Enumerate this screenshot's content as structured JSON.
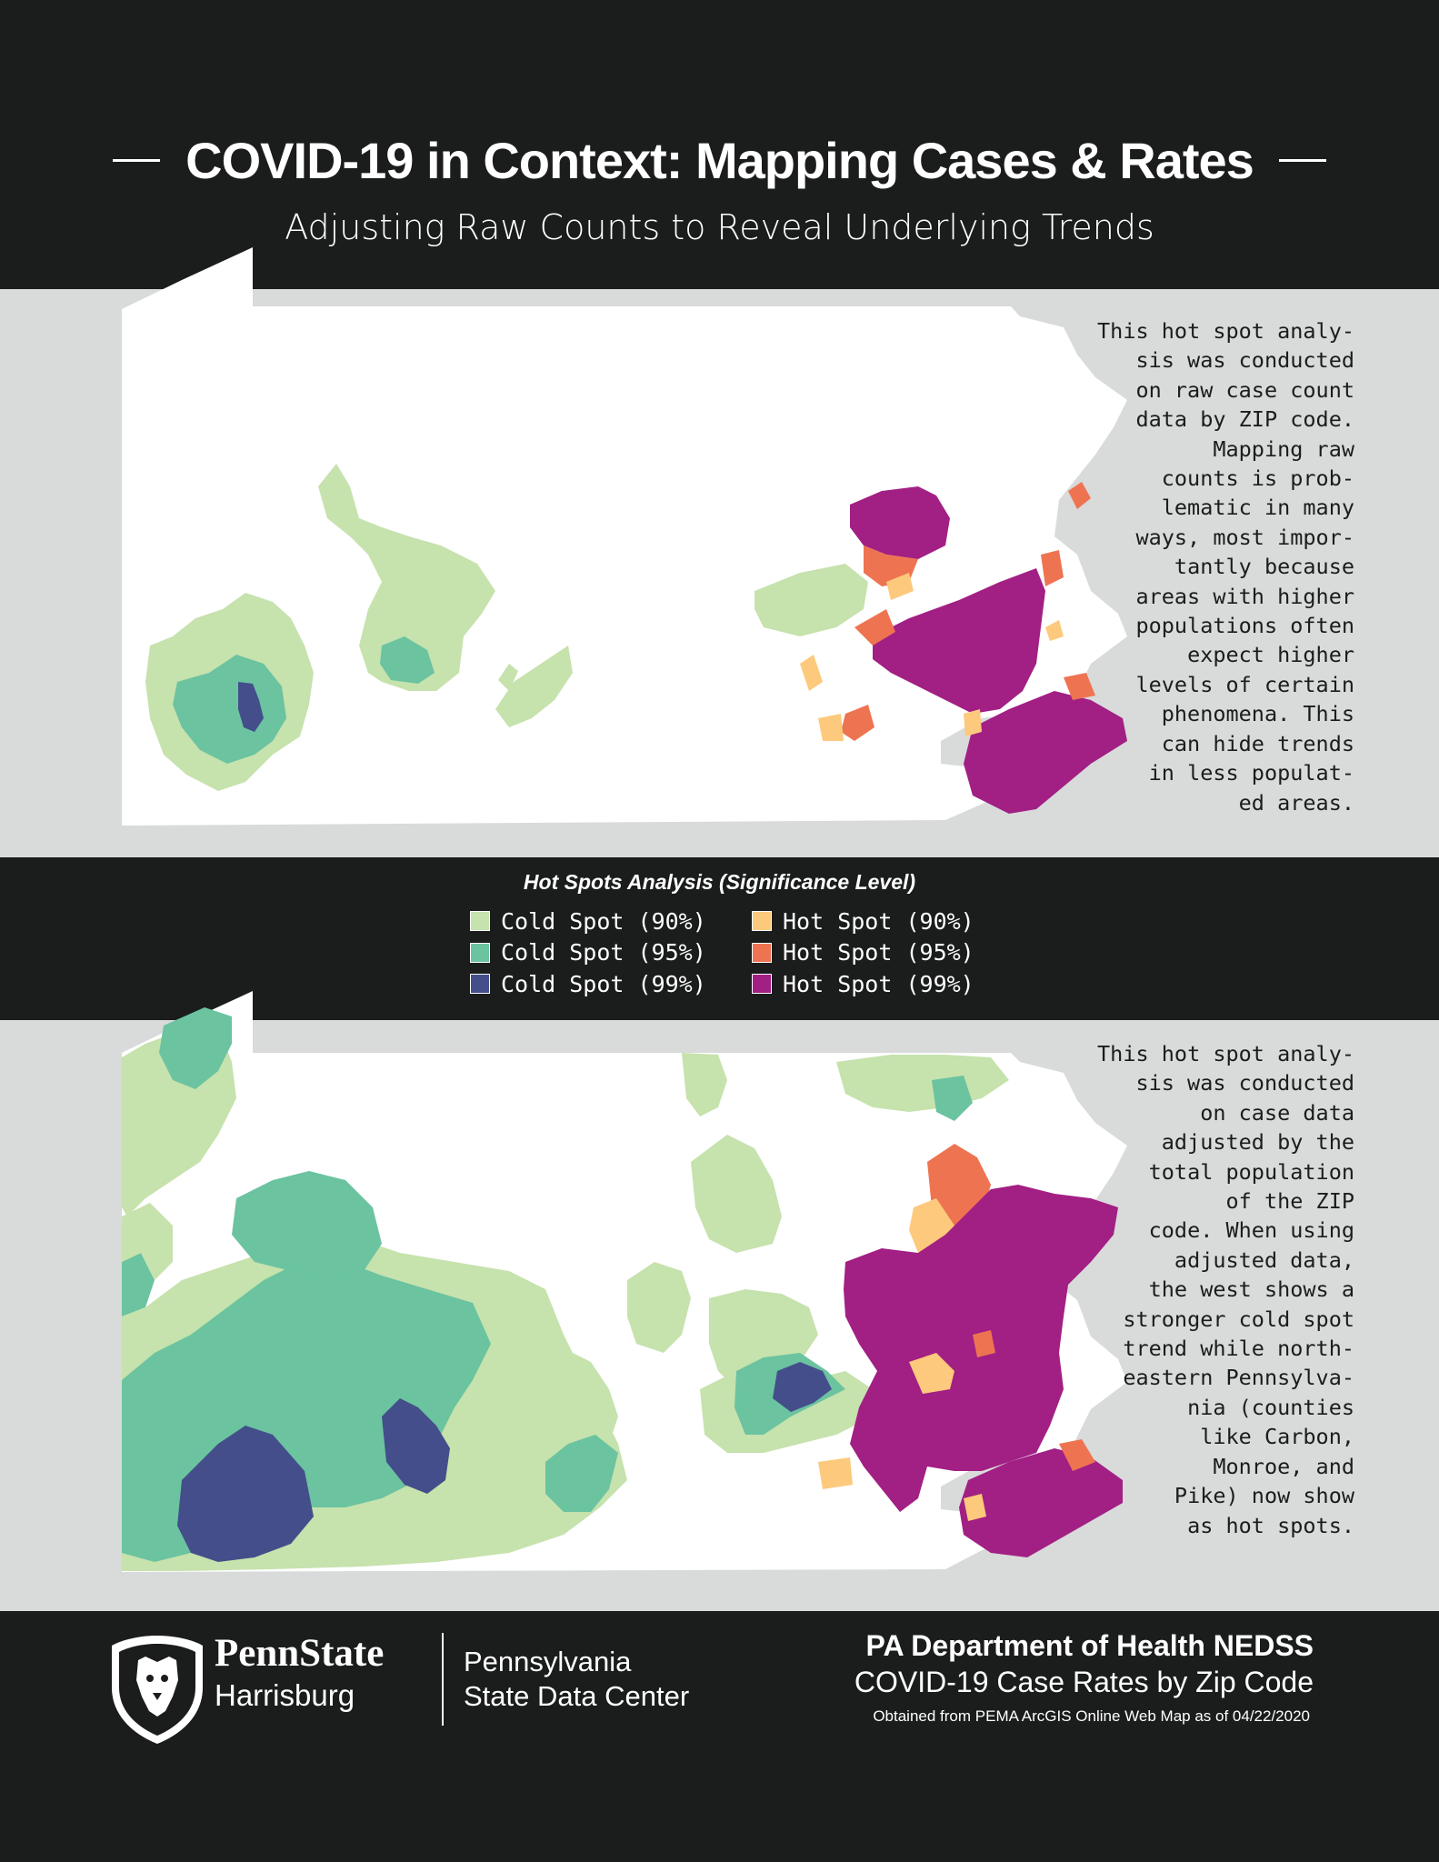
{
  "header": {
    "title": "COVID-19 in Context: Mapping Cases & Rates",
    "subtitle": "Adjusting Raw Counts to Reveal Underlying Trends"
  },
  "maps": [
    {
      "id": "raw-counts",
      "caption": "This hot spot analy-\nsis was conducted\non raw case count\ndata by ZIP code.\nMapping raw\ncounts is prob-\nlematic in many\nways, most impor-\ntantly because\nareas with higher\npopulations often\nexpect higher\nlevels of certain\nphenomena. This\ncan hide trends\nin less populat-\ned areas."
    },
    {
      "id": "adjusted-rates",
      "caption": "This hot spot analy-\nsis was conducted\non case data\nadjusted by the\ntotal population\nof the ZIP\ncode. When using\nadjusted data,\nthe west shows a\nstronger cold spot\ntrend while north-\neastern Pennsylva-\nnia (counties\nlike Carbon,\nMonroe, and\nPike) now show\nas hot spots."
    }
  ],
  "legend": {
    "title": "Hot Spots Analysis (Significance Level)",
    "items": [
      {
        "label": "Cold Spot (90%)",
        "color": "#c6e2ad"
      },
      {
        "label": "Cold Spot (95%)",
        "color": "#6bc3a0"
      },
      {
        "label": "Cold Spot (99%)",
        "color": "#434e8a"
      },
      {
        "label": "Hot Spot (90%)",
        "color": "#fdc97c"
      },
      {
        "label": "Hot Spot (95%)",
        "color": "#ee7451"
      },
      {
        "label": "Hot Spot (99%)",
        "color": "#a21f84"
      }
    ]
  },
  "footer": {
    "brand_name": "PennState",
    "brand_campus": "Harrisburg",
    "center_line1": "Pennsylvania",
    "center_line2": "State Data Center",
    "source_title": "PA Department of Health NEDSS",
    "source_subtitle": "COVID-19 Case Rates by Zip Code",
    "source_note": "Obtained from PEMA ArcGIS Online Web Map as of 04/22/2020"
  },
  "colors": {
    "background": "#1b1c1c",
    "panel": "#d9dada",
    "state_fill": "#ffffff"
  }
}
